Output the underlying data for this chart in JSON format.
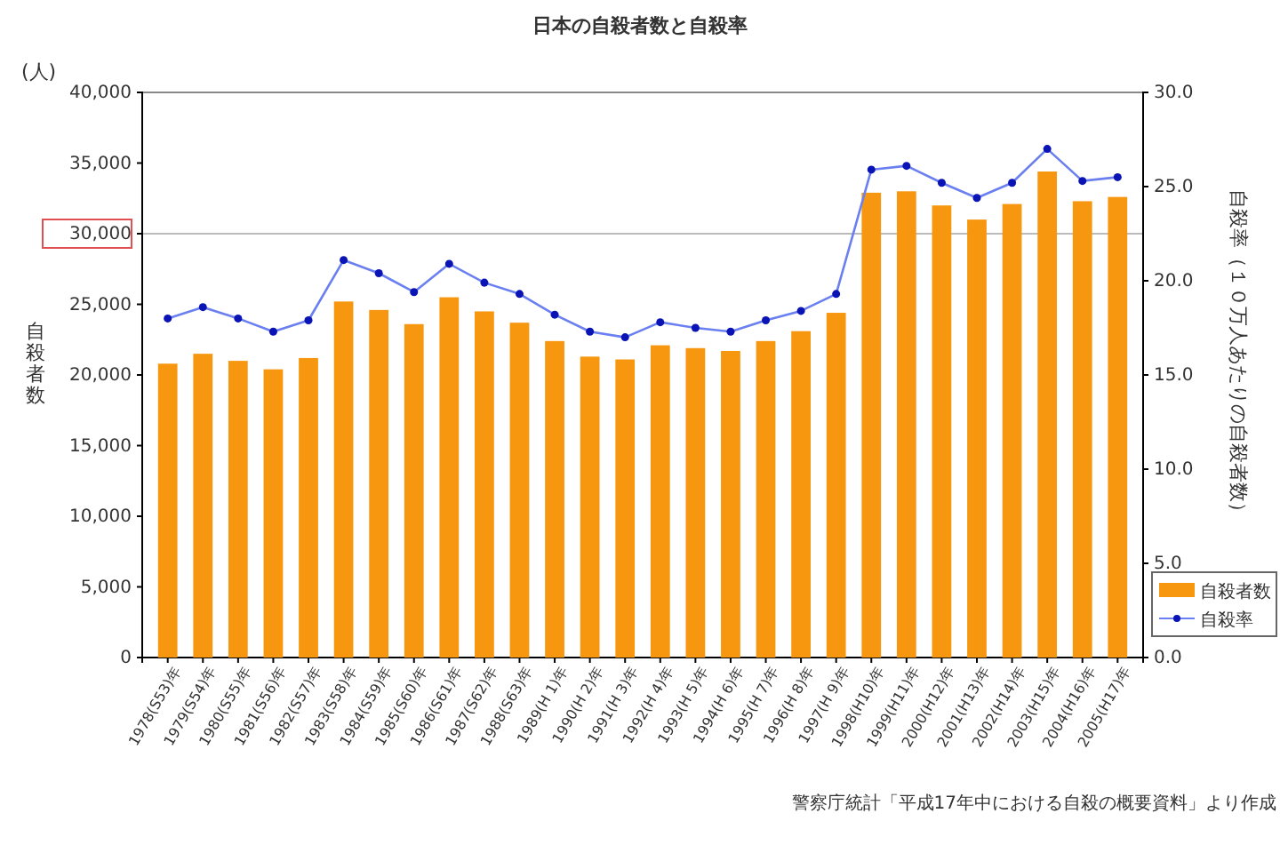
{
  "chart_data": {
    "type": "bar",
    "title": "日本の自殺者数と自殺率",
    "ylabel": "自殺者数",
    "y2label": "自殺率（１０万人あたりの自殺者数）",
    "annotations": [
      "(人)",
      "警察庁統計「平成17年中における自殺の概要資料」より作成"
    ],
    "categories": [
      "1978(S53)年",
      "1979(S54)年",
      "1980(S55)年",
      "1981(S56)年",
      "1982(S57)年",
      "1983(S58)年",
      "1984(S59)年",
      "1985(S60)年",
      "1986(S61)年",
      "1987(S62)年",
      "1988(S63)年",
      "1989(H 1)年",
      "1990(H 2)年",
      "1991(H 3)年",
      "1992(H 4)年",
      "1993(H 5)年",
      "1994(H 6)年",
      "1995(H 7)年",
      "1996(H 8)年",
      "1997(H 9)年",
      "1998(H10)年",
      "1999(H11)年",
      "2000(H12)年",
      "2001(H13)年",
      "2002(H14)年",
      "2003(H15)年",
      "2004(H16)年",
      "2005(H17)年"
    ],
    "series": [
      {
        "name": "自殺者数",
        "color": "#f7970f",
        "values": [
          20800,
          21500,
          21000,
          20400,
          21200,
          25200,
          24600,
          23600,
          25500,
          24500,
          23700,
          22400,
          21300,
          21100,
          22100,
          21900,
          21700,
          22400,
          23100,
          24400,
          32900,
          33000,
          32000,
          31000,
          32100,
          34400,
          32300,
          32600
        ]
      },
      {
        "name": "自殺率",
        "type": "line",
        "axis": "y2",
        "color": "#0a14b4",
        "marker": "circle",
        "values": [
          18.0,
          18.6,
          18.0,
          17.3,
          17.9,
          21.1,
          20.4,
          19.4,
          20.9,
          19.9,
          19.3,
          18.2,
          17.3,
          17.0,
          17.8,
          17.5,
          17.3,
          17.9,
          18.4,
          19.3,
          25.9,
          26.1,
          25.2,
          24.4,
          25.2,
          27.0,
          25.3,
          25.5
        ]
      }
    ],
    "ylim": [
      0,
      40000
    ],
    "yticks": [
      {
        "value": 0,
        "label": "0"
      },
      {
        "value": 5000,
        "label": "5,000"
      },
      {
        "value": 10000,
        "label": "10,000"
      },
      {
        "value": 15000,
        "label": "15,000"
      },
      {
        "value": 20000,
        "label": "20,000"
      },
      {
        "value": 25000,
        "label": "25,000"
      },
      {
        "value": 30000,
        "label": "30,000"
      },
      {
        "value": 35000,
        "label": "35,000"
      },
      {
        "value": 40000,
        "label": "40,000"
      }
    ],
    "y2lim": [
      0,
      30
    ],
    "y2ticks": [
      {
        "value": 0,
        "label": "0.0"
      },
      {
        "value": 5,
        "label": "5.0"
      },
      {
        "value": 10,
        "label": "10.0"
      },
      {
        "value": 15,
        "label": "15.0"
      },
      {
        "value": 20,
        "label": "20.0"
      },
      {
        "value": 25,
        "label": "25.0"
      },
      {
        "value": 30,
        "label": "30.0"
      }
    ],
    "ref_lines": [
      {
        "axis": "y",
        "value": 30000,
        "color": "#bbbbbb"
      }
    ],
    "legend": "bottom right"
  }
}
